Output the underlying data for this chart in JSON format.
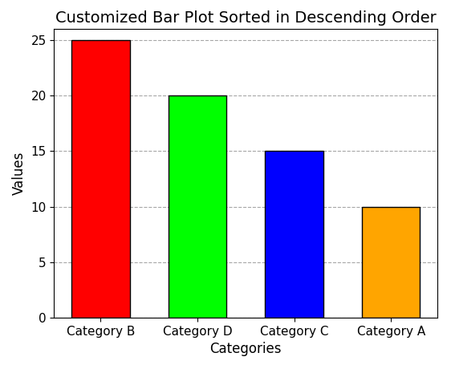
{
  "categories": [
    "Category B",
    "Category D",
    "Category C",
    "Category A"
  ],
  "values": [
    25,
    20,
    15,
    10
  ],
  "bar_colors": [
    "red",
    "lime",
    "blue",
    "orange"
  ],
  "bar_edgecolor": "black",
  "bar_linewidth": 1.0,
  "title": "Customized Bar Plot Sorted in Descending Order",
  "xlabel": "Categories",
  "ylabel": "Values",
  "ylim": [
    0,
    26
  ],
  "grid_linestyle": "--",
  "grid_color": "gray",
  "grid_alpha": 0.7,
  "title_fontsize": 14,
  "axis_label_fontsize": 12,
  "tick_fontsize": 11,
  "background_color": "white",
  "bar_width": 0.6
}
